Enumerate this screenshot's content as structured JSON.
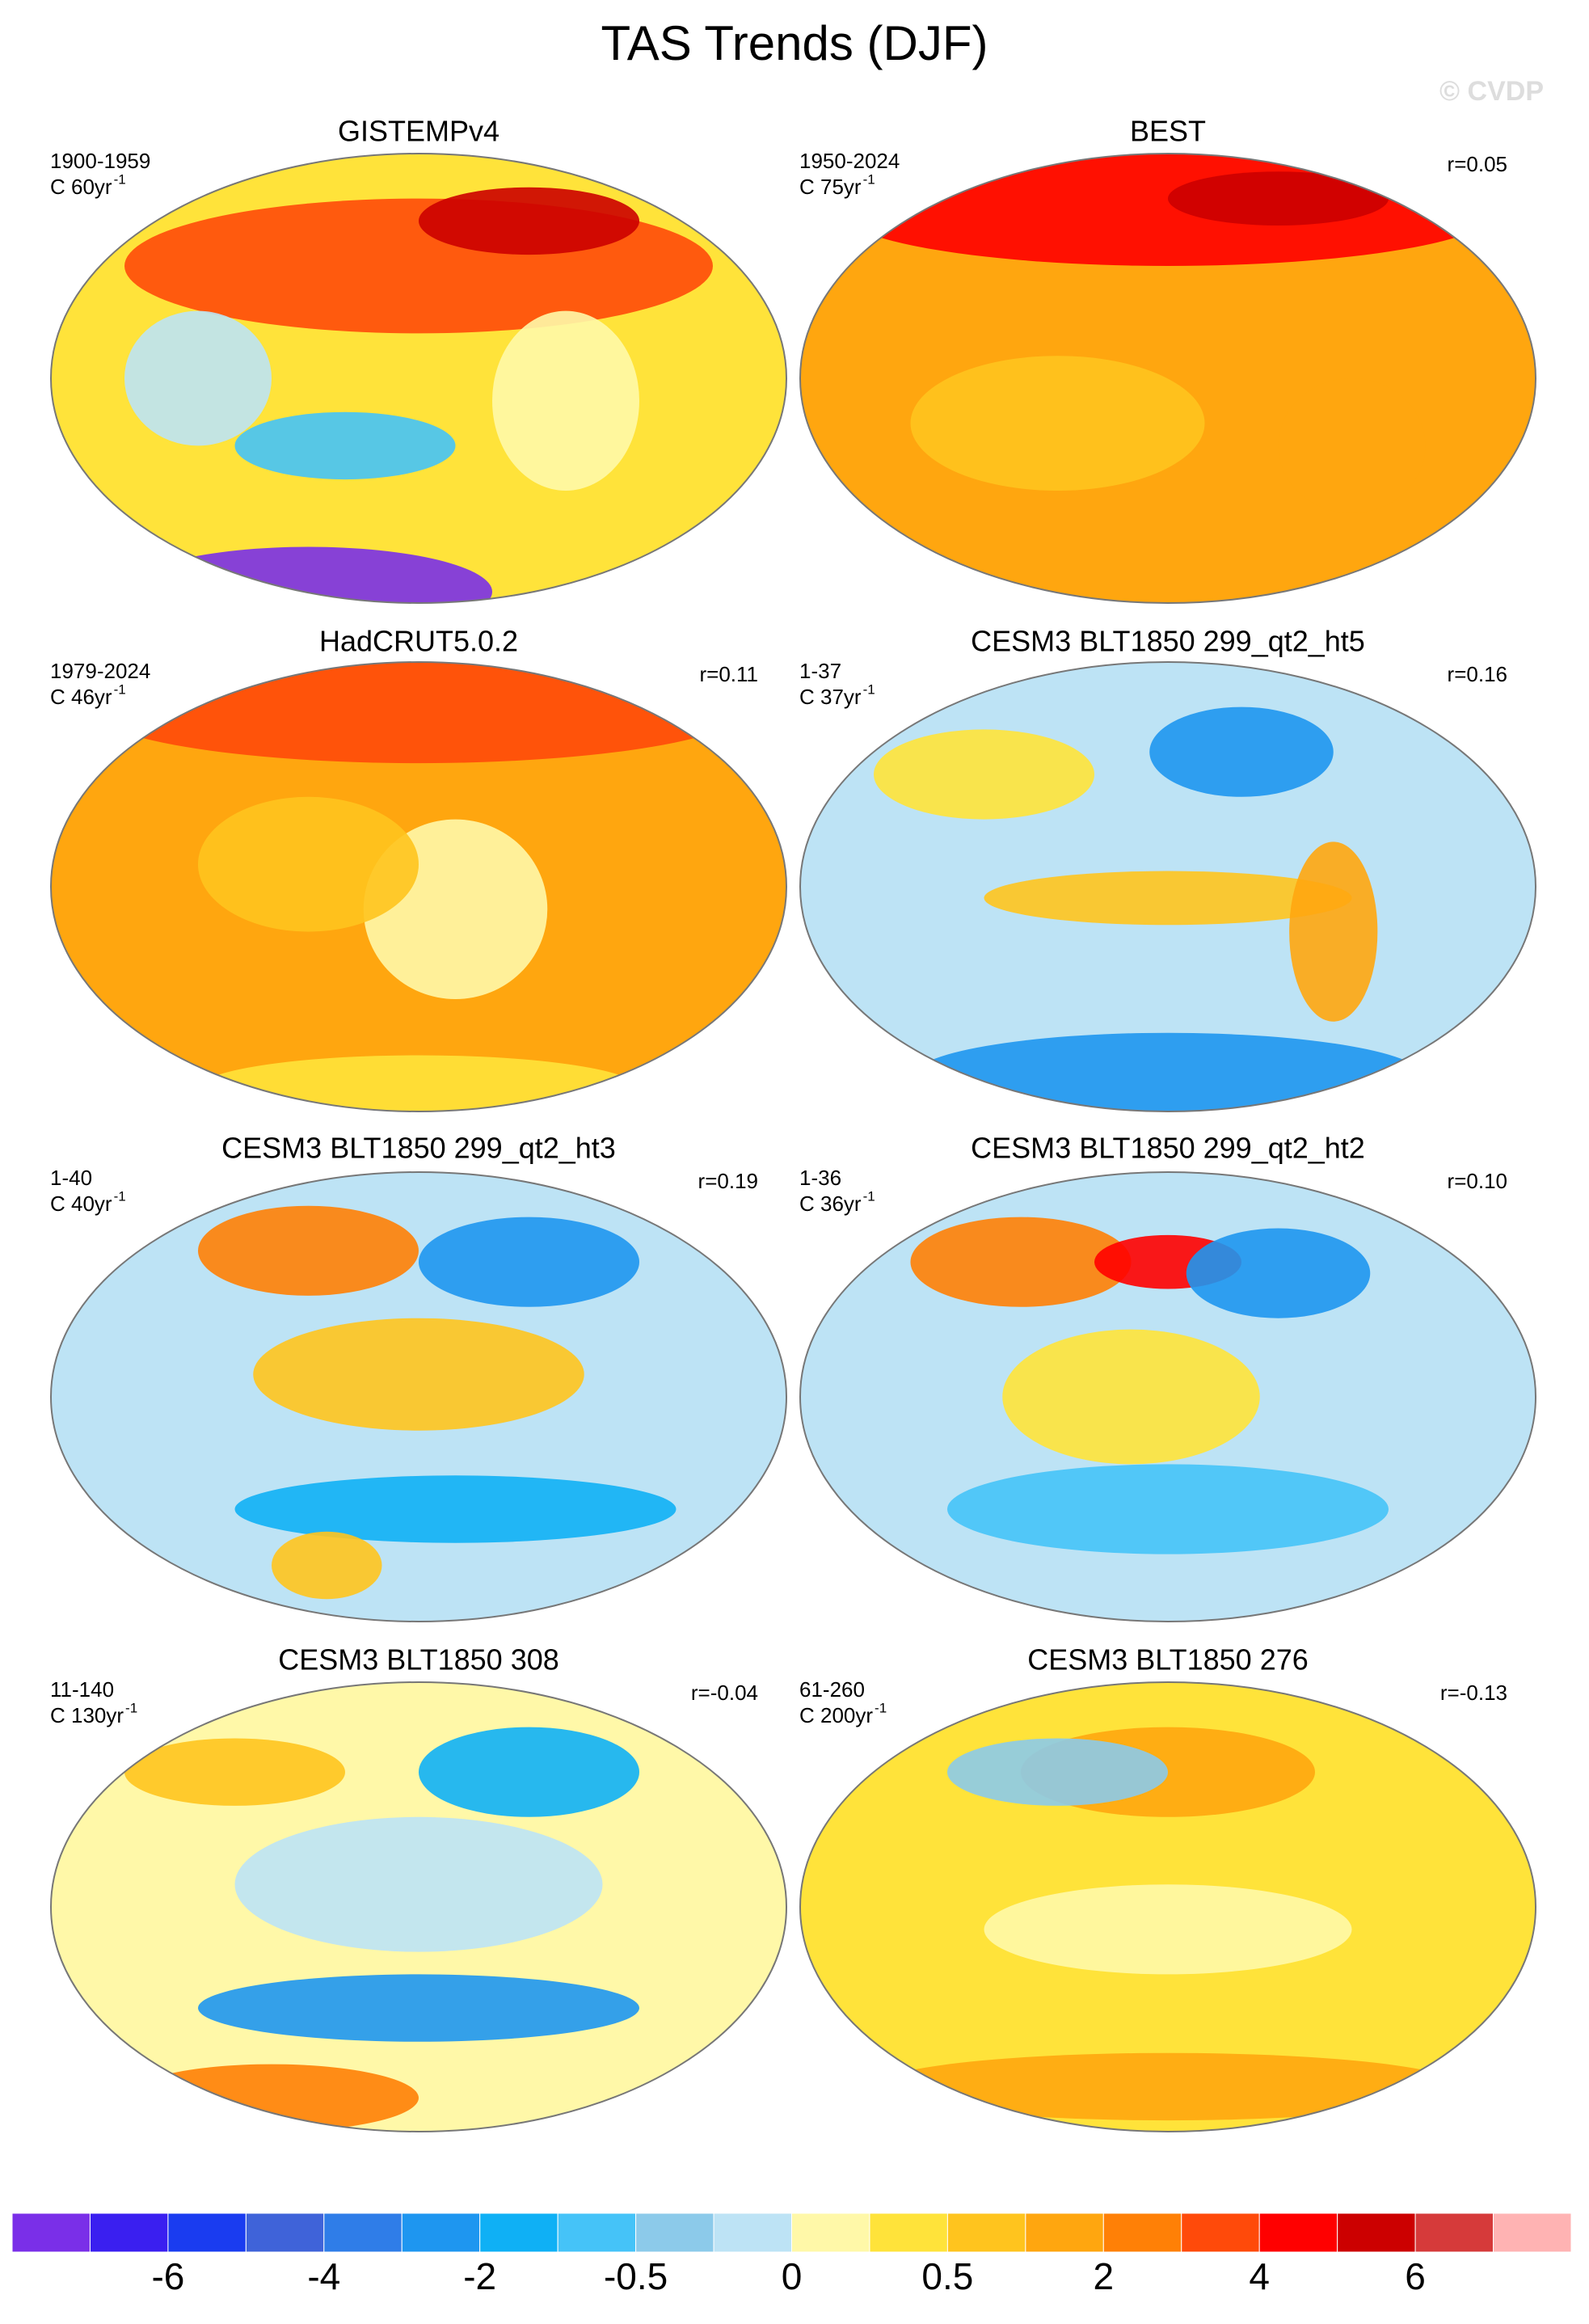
{
  "title": "TAS Trends (DJF)",
  "copyright": "© CVDP",
  "panels": [
    {
      "title": "GISTEMPv4",
      "period": "1900-1959",
      "trend": "C 60yr",
      "trend_exp": "-1",
      "correlation": null
    },
    {
      "title": "BEST",
      "period": "1950-2024",
      "trend": "C 75yr",
      "trend_exp": "-1",
      "correlation": "r=0.05"
    },
    {
      "title": "HadCRUT5.0.2",
      "period": "1979-2024",
      "trend": "C 46yr",
      "trend_exp": "-1",
      "correlation": "r=0.11"
    },
    {
      "title": "CESM3 BLT1850 299_qt2_ht5",
      "period": "1-37",
      "trend": "C 37yr",
      "trend_exp": "-1",
      "correlation": "r=0.16"
    },
    {
      "title": "CESM3 BLT1850 299_qt2_ht3",
      "period": "1-40",
      "trend": "C 40yr",
      "trend_exp": "-1",
      "correlation": "r=0.19"
    },
    {
      "title": "CESM3 BLT1850 299_qt2_ht2",
      "period": "1-36",
      "trend": "C 36yr",
      "trend_exp": "-1",
      "correlation": "r=0.10"
    },
    {
      "title": "CESM3 BLT1850 308",
      "period": "11-140",
      "trend": "C 130yr",
      "trend_exp": "-1",
      "correlation": "r=-0.04"
    },
    {
      "title": "CESM3 BLT1850 276",
      "period": "61-260",
      "trend": "C 200yr",
      "trend_exp": "-1",
      "correlation": "r=-0.13"
    }
  ],
  "colorbar": {
    "colors": [
      "#7a2fe8",
      "#3a1ff0",
      "#1a3cf0",
      "#3f63d9",
      "#2f7de8",
      "#1e96f0",
      "#0fb0f5",
      "#45c3f8",
      "#8ccaea",
      "#bde3f5",
      "#fff8a8",
      "#ffe33a",
      "#ffc41e",
      "#ffa60f",
      "#ff8006",
      "#ff4a0a",
      "#ff0000",
      "#cc0000",
      "#d63a3a",
      "#ffb3b3"
    ],
    "ticks": [
      -6,
      -4,
      -2,
      -0.5,
      0,
      0.5,
      2,
      4,
      6
    ]
  }
}
